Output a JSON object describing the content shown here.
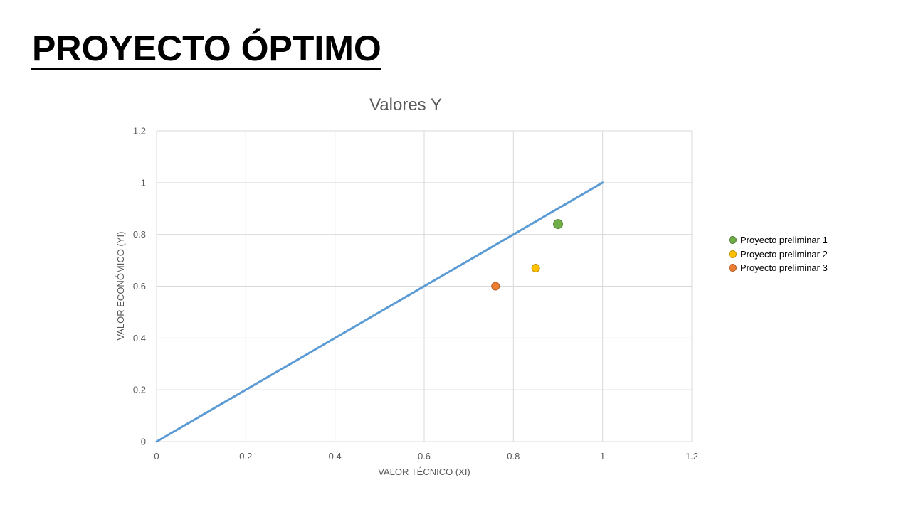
{
  "slide": {
    "title": "PROYECTO ÓPTIMO"
  },
  "chart_data": {
    "type": "scatter",
    "title": "Valores Y",
    "xlabel": "VALOR TÉCNICO (XI)",
    "ylabel": "VALOR ECONÓMICO (YI)",
    "xlim": [
      0,
      1.2
    ],
    "ylim": [
      0,
      1.2
    ],
    "x_ticks": [
      "0",
      "0.2",
      "0.4",
      "0.6",
      "0.8",
      "1",
      "1.2"
    ],
    "y_ticks": [
      "0",
      "0.2",
      "0.4",
      "0.6",
      "0.8",
      "1",
      "1.2"
    ],
    "grid": true,
    "legend_position": "right",
    "line": {
      "points": [
        [
          0,
          0
        ],
        [
          1,
          1
        ]
      ],
      "color": "#5b9bd5"
    },
    "series": [
      {
        "name": "Proyecto preliminar 1",
        "x": 0.9,
        "y": 0.84,
        "color": "#70ad47"
      },
      {
        "name": "Proyecto preliminar 2",
        "x": 0.85,
        "y": 0.67,
        "color": "#ffc000"
      },
      {
        "name": "Proyecto preliminar 3",
        "x": 0.76,
        "y": 0.6,
        "color": "#ed7d31"
      }
    ]
  }
}
